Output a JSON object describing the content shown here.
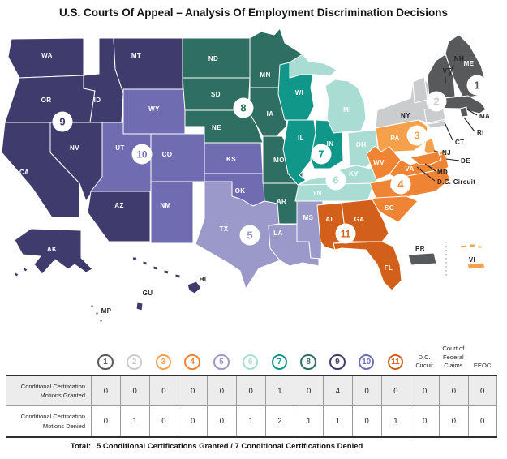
{
  "title": "U.S. Courts Of Appeal – Analysis Of Employment Discrimination Decisions",
  "map": {
    "circuit_colors": {
      "1": "#58595b",
      "2": "#cbccce",
      "3": "#f5a14b",
      "4": "#ee8434",
      "5": "#9b99ca",
      "6": "#a9dcd2",
      "7": "#11968a",
      "8": "#2f6e62",
      "9": "#3f3b6c",
      "10": "#6f6cb1",
      "11": "#d2601b"
    },
    "state_circuits": {
      "WA": "9",
      "OR": "9",
      "CA": "9",
      "NV": "9",
      "ID": "9",
      "MT": "9",
      "AZ": "9",
      "AK": "9",
      "HI": "9",
      "GU": "9",
      "MP": "9",
      "WY": "10",
      "UT": "10",
      "CO": "10",
      "NM": "10",
      "KS": "10",
      "OK": "10",
      "ND": "8",
      "SD": "8",
      "NE": "8",
      "MN": "8",
      "IA": "8",
      "MO": "8",
      "AR": "8",
      "TX": "5",
      "LA": "5",
      "MS": "5",
      "WI": "7",
      "IL": "7",
      "IN": "7",
      "MI": "6",
      "OH": "6",
      "KY": "6",
      "TN": "6",
      "NY": "2",
      "VT": "2",
      "CT": "2",
      "PA": "3",
      "NJ": "3",
      "DE": "3",
      "VI": "3",
      "VA": "4",
      "WV": "4",
      "NC": "4",
      "SC": "4",
      "MD": "4",
      "AL": "11",
      "GA": "11",
      "FL": "11",
      "ME": "1",
      "NH": "1",
      "MA": "1",
      "RI": "1",
      "PR": "1"
    },
    "callout_labels": [
      "NH",
      "VT",
      "MA",
      "RI",
      "CT",
      "NJ",
      "DE",
      "MD",
      "D.C. Circuit"
    ],
    "badge_numbers": [
      "1",
      "2",
      "3",
      "4",
      "5",
      "6",
      "7",
      "8",
      "9",
      "10",
      "11"
    ]
  },
  "table": {
    "columns": [
      "1",
      "2",
      "3",
      "4",
      "5",
      "6",
      "7",
      "8",
      "9",
      "10",
      "11",
      "D.C. Circuit",
      "Court of Federal Claims",
      "EEOC"
    ],
    "row_labels": [
      "Conditional Certification Motions Granted",
      "Conditional Certification Motions Denied"
    ],
    "granted": [
      0,
      0,
      0,
      0,
      0,
      0,
      1,
      0,
      4,
      0,
      0,
      0,
      0,
      0
    ],
    "denied": [
      0,
      1,
      0,
      0,
      0,
      1,
      2,
      1,
      1,
      0,
      1,
      0,
      0,
      0
    ]
  },
  "total": {
    "label": "Total:",
    "text": "5 Conditional Certifications Granted / 7 Conditional Certifications Denied"
  },
  "chart_data": {
    "type": "table",
    "title": "U.S. Courts Of Appeal – Analysis Of Employment Discrimination Decisions",
    "categories": [
      "1st Circuit",
      "2nd Circuit",
      "3rd Circuit",
      "4th Circuit",
      "5th Circuit",
      "6th Circuit",
      "7th Circuit",
      "8th Circuit",
      "9th Circuit",
      "10th Circuit",
      "11th Circuit",
      "D.C. Circuit",
      "Court of Federal Claims",
      "EEOC"
    ],
    "series": [
      {
        "name": "Conditional Certification Motions Granted",
        "values": [
          0,
          0,
          0,
          0,
          0,
          0,
          1,
          0,
          4,
          0,
          0,
          0,
          0,
          0
        ]
      },
      {
        "name": "Conditional Certification Motions Denied",
        "values": [
          0,
          1,
          0,
          0,
          0,
          1,
          2,
          1,
          1,
          0,
          1,
          0,
          0,
          0
        ]
      }
    ],
    "totals": {
      "granted": 5,
      "denied": 7
    }
  }
}
